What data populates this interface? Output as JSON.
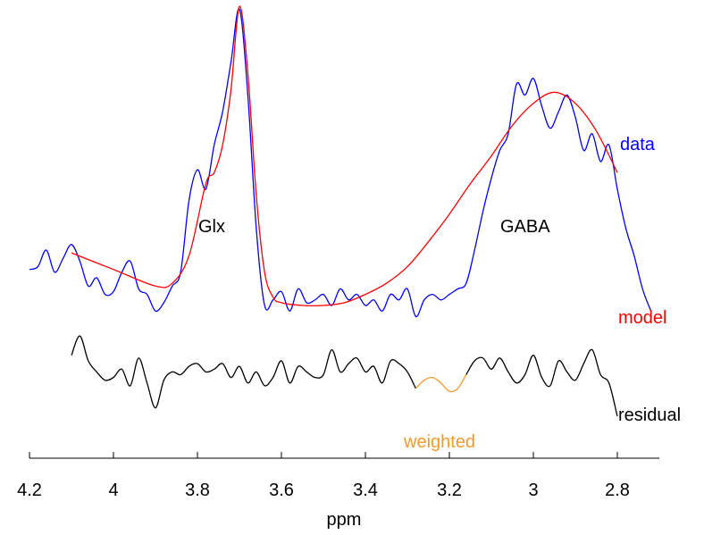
{
  "chart_data": {
    "type": "line",
    "xlabel": "ppm",
    "xlim": [
      4.2,
      2.7
    ],
    "x_reversed": true,
    "xticks": [
      4.2,
      4.0,
      3.8,
      3.6,
      3.4,
      3.2,
      3.0,
      2.8
    ],
    "xtick_labels": [
      "4.2",
      "4",
      "3.8",
      "3.6",
      "3.4",
      "3.2",
      "3",
      "2.8"
    ],
    "peak_labels": [
      {
        "text": "Glx",
        "ppm": 3.75
      },
      {
        "text": "GABA",
        "ppm": 3.0
      }
    ],
    "series": [
      {
        "name": "data",
        "color": "#0000ff",
        "x": [
          4.2,
          4.18,
          4.16,
          4.14,
          4.12,
          4.1,
          4.08,
          4.06,
          4.04,
          4.02,
          4.0,
          3.98,
          3.96,
          3.94,
          3.92,
          3.9,
          3.88,
          3.86,
          3.84,
          3.82,
          3.8,
          3.78,
          3.76,
          3.74,
          3.72,
          3.7,
          3.68,
          3.66,
          3.64,
          3.62,
          3.6,
          3.58,
          3.56,
          3.54,
          3.52,
          3.5,
          3.48,
          3.46,
          3.44,
          3.42,
          3.4,
          3.38,
          3.36,
          3.34,
          3.32,
          3.3,
          3.28,
          3.26,
          3.24,
          3.22,
          3.2,
          3.18,
          3.16,
          3.14,
          3.12,
          3.1,
          3.08,
          3.06,
          3.04,
          3.02,
          3.0,
          2.98,
          2.96,
          2.94,
          2.92,
          2.9,
          2.88,
          2.86,
          2.84,
          2.82,
          2.8,
          2.78,
          2.76,
          2.74,
          2.72
        ],
        "y": [
          2.15,
          2.2,
          2.5,
          2.1,
          2.35,
          2.6,
          2.3,
          1.85,
          2.0,
          1.7,
          1.75,
          2.1,
          2.3,
          1.8,
          1.7,
          1.4,
          1.55,
          1.85,
          2.1,
          3.4,
          3.95,
          3.6,
          4.4,
          5.0,
          5.9,
          6.85,
          5.3,
          2.9,
          1.5,
          1.6,
          1.75,
          1.4,
          1.8,
          1.55,
          1.6,
          1.7,
          1.5,
          1.8,
          1.6,
          1.7,
          1.5,
          1.6,
          1.4,
          1.7,
          1.6,
          1.8,
          1.3,
          1.6,
          1.7,
          1.6,
          1.7,
          1.8,
          1.9,
          2.5,
          3.2,
          3.8,
          4.3,
          4.6,
          5.5,
          5.3,
          5.6,
          5.1,
          4.7,
          5.0,
          5.3,
          4.9,
          4.3,
          4.6,
          4.1,
          4.4,
          3.6,
          2.9,
          2.4,
          1.8,
          1.4
        ]
      },
      {
        "name": "model",
        "color": "#ff0000",
        "x": [
          4.1,
          4.0,
          3.9,
          3.86,
          3.82,
          3.78,
          3.76,
          3.74,
          3.72,
          3.7,
          3.68,
          3.66,
          3.64,
          3.62,
          3.6,
          3.55,
          3.5,
          3.45,
          3.4,
          3.35,
          3.3,
          3.25,
          3.2,
          3.15,
          3.1,
          3.05,
          3.0,
          2.95,
          2.9,
          2.85,
          2.8
        ],
        "y": [
          2.45,
          2.15,
          1.85,
          1.9,
          2.4,
          3.7,
          3.9,
          4.4,
          5.4,
          6.9,
          5.7,
          3.5,
          2.1,
          1.65,
          1.55,
          1.5,
          1.5,
          1.55,
          1.7,
          1.9,
          2.2,
          2.65,
          3.15,
          3.7,
          4.2,
          4.75,
          5.15,
          5.35,
          5.15,
          4.65,
          3.9
        ]
      },
      {
        "name": "residual",
        "color": "#000000",
        "x": [
          4.1,
          4.08,
          4.06,
          4.04,
          4.02,
          4.0,
          3.98,
          3.96,
          3.94,
          3.92,
          3.9,
          3.88,
          3.86,
          3.84,
          3.82,
          3.8,
          3.78,
          3.76,
          3.74,
          3.72,
          3.7,
          3.68,
          3.66,
          3.64,
          3.62,
          3.6,
          3.58,
          3.56,
          3.54,
          3.52,
          3.5,
          3.48,
          3.46,
          3.44,
          3.42,
          3.4,
          3.38,
          3.36,
          3.34,
          3.32,
          3.3,
          3.28
        ],
        "y": [
          0.6,
          0.95,
          0.5,
          0.3,
          0.15,
          0.2,
          0.35,
          0.05,
          0.55,
          0.1,
          -0.35,
          0.15,
          0.3,
          0.25,
          0.4,
          0.45,
          0.3,
          0.35,
          0.45,
          0.2,
          0.4,
          0.1,
          0.3,
          0.05,
          0.2,
          0.5,
          0.1,
          0.4,
          0.3,
          0.2,
          0.25,
          0.7,
          0.3,
          0.45,
          0.55,
          0.3,
          0.4,
          0.1,
          0.5,
          0.45,
          0.3,
          0.0
        ]
      },
      {
        "name": "weighted",
        "color": "#f29a2e",
        "x": [
          3.28,
          3.26,
          3.24,
          3.22,
          3.2,
          3.18,
          3.16
        ],
        "y": [
          0.0,
          0.15,
          0.2,
          0.1,
          -0.05,
          0.0,
          0.25
        ]
      },
      {
        "name": "residual",
        "color": "#000000",
        "x": [
          3.16,
          3.14,
          3.12,
          3.1,
          3.08,
          3.06,
          3.04,
          3.02,
          3.0,
          2.98,
          2.96,
          2.94,
          2.92,
          2.9,
          2.88,
          2.86,
          2.84,
          2.82,
          2.8
        ],
        "y": [
          0.25,
          0.5,
          0.55,
          0.35,
          0.55,
          0.3,
          0.1,
          0.25,
          0.6,
          0.2,
          0.05,
          0.5,
          0.3,
          0.15,
          0.45,
          0.7,
          0.25,
          0.1,
          -0.5
        ]
      }
    ],
    "legend_labels": [
      {
        "text": "data",
        "color": "#0000ff"
      },
      {
        "text": "model",
        "color": "#ff0000"
      },
      {
        "text": "residual",
        "color": "#000000"
      },
      {
        "text": "weighted",
        "color": "#f29a2e"
      }
    ],
    "grid": false
  }
}
